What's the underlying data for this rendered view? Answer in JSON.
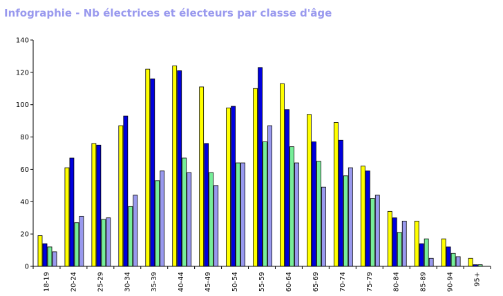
{
  "title": "Infographie - Nb électrices et électeurs par classe d'âge",
  "colors": {
    "title": "#9999ee",
    "axis": "#000000",
    "bar_outline": "#000000"
  },
  "chart_data": {
    "type": "bar",
    "title": "Infographie - Nb électrices et électeurs par classe d'âge",
    "xlabel": "",
    "ylabel": "",
    "ylim": [
      0,
      140
    ],
    "y_ticks": [
      0,
      20,
      40,
      60,
      80,
      100,
      120,
      140
    ],
    "grid": false,
    "legend": "none",
    "categories": [
      "18-19",
      "20-24",
      "25-29",
      "30-34",
      "35-39",
      "40-44",
      "45-49",
      "50-54",
      "55-59",
      "60-64",
      "65-69",
      "70-74",
      "75-79",
      "80-84",
      "85-89",
      "90-94",
      "95+"
    ],
    "series": [
      {
        "color": "#ffff00",
        "values": [
          19,
          61,
          76,
          87,
          122,
          124,
          111,
          98,
          110,
          113,
          94,
          89,
          62,
          34,
          28,
          17,
          5
        ]
      },
      {
        "color": "#0000dd",
        "values": [
          14,
          67,
          75,
          93,
          116,
          121,
          76,
          99,
          123,
          97,
          77,
          78,
          59,
          30,
          14,
          12,
          1
        ]
      },
      {
        "color": "#77ee99",
        "values": [
          12,
          27,
          29,
          37,
          53,
          67,
          58,
          64,
          77,
          74,
          65,
          56,
          42,
          21,
          17,
          8,
          1
        ]
      },
      {
        "color": "#9999ee",
        "values": [
          9,
          31,
          30,
          44,
          59,
          58,
          50,
          64,
          87,
          64,
          49,
          61,
          44,
          28,
          5,
          6,
          0
        ]
      }
    ]
  }
}
